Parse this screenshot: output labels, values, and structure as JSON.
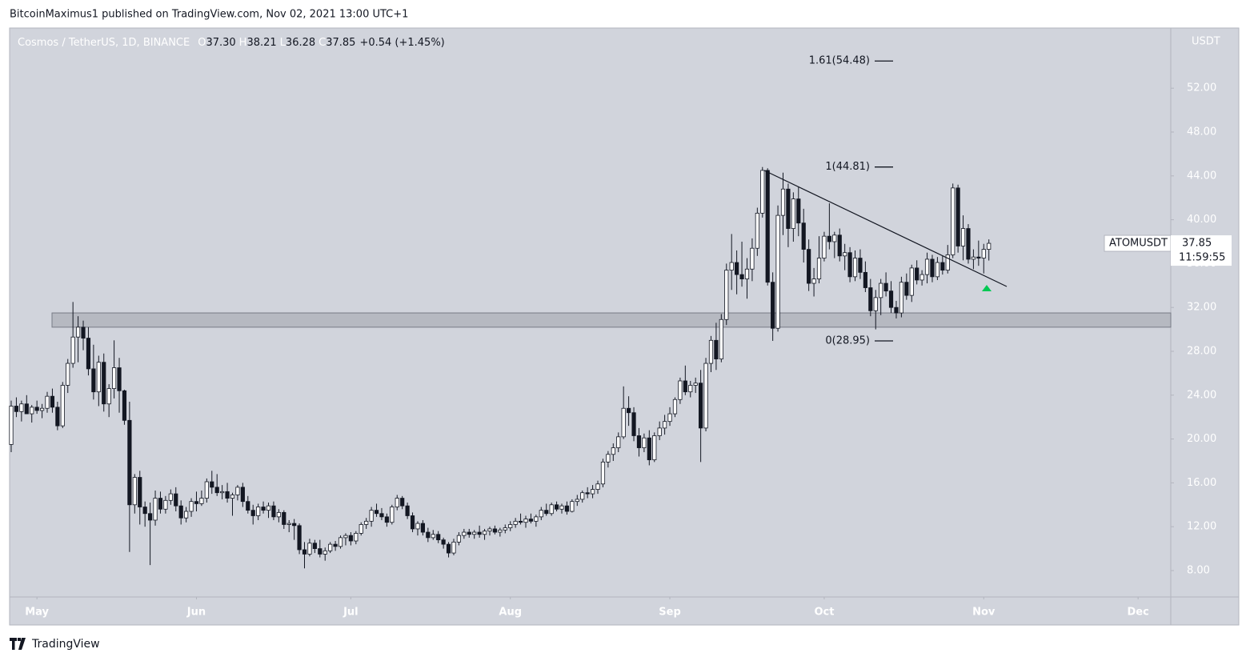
{
  "header": "BitcoinMaximus1 published on TradingView.com, Nov 02, 2021 13:00 UTC+1",
  "footer": "TradingView",
  "chart_data": {
    "type": "candlestick",
    "title": "Cosmos / TetherUS, 1D, BINANCE",
    "legend": [
      {
        "key": "O",
        "value": "37.30"
      },
      {
        "key": "H",
        "value": "38.21"
      },
      {
        "key": "L",
        "value": "36.28"
      },
      {
        "key": "C",
        "value": "37.85"
      }
    ],
    "change": "+0.54 (+1.45%)",
    "categories": [
      null,
      null,
      null,
      null,
      null,
      "May",
      null,
      null,
      null,
      null,
      null,
      null,
      null,
      null,
      null,
      null,
      null,
      null,
      null,
      null,
      null,
      null,
      null,
      null,
      null,
      null,
      null,
      null,
      null,
      null,
      null,
      null,
      null,
      null,
      null,
      null,
      "Jun",
      null,
      null,
      null,
      null,
      null,
      null,
      null,
      null,
      null,
      null,
      null,
      null,
      null,
      null,
      null,
      null,
      null,
      null,
      null,
      null,
      null,
      null,
      null,
      null,
      null,
      null,
      null,
      null,
      null,
      "Jul",
      null,
      null,
      null,
      null,
      null,
      null,
      null,
      null,
      null,
      null,
      null,
      null,
      null,
      null,
      null,
      null,
      null,
      null,
      null,
      null,
      null,
      null,
      null,
      null,
      null,
      null,
      null,
      null,
      null,
      null,
      "Aug",
      null,
      null,
      null,
      null,
      null,
      null,
      null,
      null,
      null,
      null,
      null,
      null,
      null,
      null,
      null,
      null,
      null,
      null,
      null,
      null,
      null,
      null,
      null,
      null,
      null,
      null,
      null,
      null,
      null,
      null,
      "Sep",
      null,
      null,
      null,
      null,
      null,
      null,
      null,
      null,
      null,
      null,
      null,
      null,
      null,
      null,
      null,
      null,
      null,
      null,
      null,
      null,
      null,
      null,
      null,
      null,
      null,
      null,
      null,
      null,
      null,
      "Oct",
      null,
      null,
      null,
      null,
      null,
      null,
      null,
      null,
      null,
      null,
      null,
      null,
      null,
      null,
      null,
      null,
      null,
      null,
      null,
      null,
      null,
      null,
      null,
      null,
      null,
      null,
      null,
      null,
      null,
      null,
      "Nov",
      null,
      null,
      null,
      null,
      null,
      null,
      null,
      null,
      null,
      null,
      null,
      null,
      null,
      null,
      null,
      null,
      null,
      null,
      null,
      null,
      null,
      null,
      null,
      null,
      null,
      null,
      null,
      null,
      null,
      "Dec"
    ],
    "open": [
      19.5,
      23.0,
      22.5,
      23.2,
      22.3,
      22.9,
      22.6,
      22.8,
      23.9,
      22.9,
      21.2,
      24.9,
      26.9,
      29.3,
      30.2,
      29.2,
      26.4,
      24.3,
      27.0,
      23.2,
      24.6,
      26.5,
      24.4,
      21.7,
      14.0,
      16.5,
      13.8,
      13.2,
      12.6,
      14.6,
      13.6,
      14.4,
      15.0,
      13.9,
      12.8,
      13.4,
      14.3,
      14.1,
      14.6,
      16.1,
      15.6,
      15.1,
      15.2,
      14.6,
      14.9,
      15.6,
      14.3,
      13.5,
      13.0,
      13.8,
      13.5,
      13.9,
      12.9,
      13.3,
      12.2,
      12.3,
      12.1,
      9.9,
      9.5,
      10.5,
      10.0,
      9.5,
      9.8,
      10.4,
      10.2,
      11.0,
      11.2,
      10.7,
      11.4,
      12.2,
      12.5,
      13.5,
      13.2,
      12.9,
      12.4,
      13.8,
      14.6,
      13.9,
      13.0,
      11.8,
      12.3,
      11.5,
      11.0,
      11.3,
      10.8,
      10.4,
      9.6,
      10.6,
      11.2,
      11.5,
      11.3,
      11.5,
      11.3,
      11.6,
      11.8,
      11.5,
      11.7,
      11.9,
      12.2,
      12.5,
      12.4,
      12.7,
      12.5,
      12.9,
      13.5,
      13.2,
      14.0,
      13.6,
      13.9,
      13.4,
      14.3,
      14.5,
      15.1,
      15.0,
      15.4,
      15.9,
      17.9,
      18.6,
      19.2,
      20.2,
      22.8,
      22.4,
      20.3,
      19.2,
      20.1,
      18.1,
      20.3,
      21.0,
      21.6,
      22.3,
      23.6,
      25.3,
      24.3,
      24.9,
      25.1,
      21.0,
      26.9,
      29.0,
      27.3,
      30.9,
      35.4,
      36.1,
      35.0,
      34.6,
      35.5,
      37.4,
      40.6,
      44.5,
      34.3,
      30.1,
      40.4,
      42.8,
      39.2,
      41.9,
      39.7,
      37.3,
      34.2,
      34.6,
      36.5,
      38.5,
      38.0,
      38.6,
      36.7,
      37.0,
      34.8,
      36.5,
      35.2,
      33.8,
      31.7,
      32.9,
      34.2,
      33.5,
      32.0,
      31.5,
      34.3,
      33.1,
      35.6,
      34.5,
      35.0,
      36.4,
      34.8,
      36.1,
      35.4,
      36.8,
      42.9,
      37.6,
      39.2,
      36.4,
      36.6,
      36.5,
      37.3,
      null,
      null,
      null,
      null,
      null,
      null,
      null,
      null,
      null,
      null,
      null,
      null,
      null,
      null,
      null,
      null,
      null,
      null,
      null,
      null,
      null,
      null,
      null,
      null,
      null,
      null,
      null,
      null,
      null
    ],
    "high": [
      23.5,
      23.8,
      23.5,
      24.0,
      23.1,
      23.5,
      23.2,
      24.3,
      24.6,
      23.4,
      25.2,
      27.3,
      32.5,
      31.2,
      30.8,
      30.2,
      28.6,
      27.6,
      27.8,
      25.0,
      29.0,
      27.4,
      24.5,
      23.4,
      16.8,
      17.1,
      14.3,
      14.2,
      15.3,
      15.2,
      14.8,
      15.4,
      15.6,
      14.4,
      13.8,
      14.6,
      15.2,
      15.3,
      16.4,
      17.1,
      16.8,
      15.8,
      16.0,
      15.1,
      15.8,
      16.0,
      14.8,
      14.0,
      14.1,
      14.3,
      14.2,
      14.3,
      13.6,
      13.5,
      12.6,
      12.7,
      12.3,
      10.6,
      10.9,
      10.8,
      10.8,
      10.1,
      10.6,
      10.7,
      11.2,
      11.4,
      11.5,
      11.6,
      12.4,
      12.8,
      13.8,
      14.1,
      13.7,
      13.2,
      14.0,
      14.9,
      14.8,
      14.2,
      13.3,
      12.5,
      12.6,
      11.9,
      11.7,
      11.6,
      11.0,
      10.6,
      10.9,
      11.5,
      11.8,
      11.8,
      11.7,
      12.1,
      11.8,
      12.0,
      12.1,
      11.9,
      12.2,
      12.5,
      12.8,
      13.2,
      13.0,
      13.2,
      13.1,
      13.8,
      14.1,
      14.2,
      14.3,
      14.1,
      14.3,
      14.5,
      14.9,
      15.3,
      15.6,
      15.8,
      16.2,
      18.2,
      18.9,
      19.6,
      20.6,
      24.8,
      23.9,
      22.9,
      21.0,
      20.5,
      20.8,
      20.6,
      21.6,
      22.2,
      22.9,
      23.8,
      25.6,
      26.7,
      25.3,
      25.6,
      26.3,
      27.4,
      29.4,
      30.6,
      31.4,
      36.0,
      38.7,
      37.2,
      38.0,
      36.5,
      38.3,
      41.1,
      44.81,
      44.7,
      35.2,
      41.3,
      44.3,
      43.3,
      42.5,
      43.0,
      41.0,
      38.2,
      35.6,
      38.5,
      38.9,
      41.5,
      38.9,
      39.2,
      37.8,
      37.5,
      37.2,
      37.3,
      36.2,
      34.6,
      33.6,
      34.6,
      35.2,
      34.4,
      32.6,
      34.8,
      35.1,
      35.9,
      36.3,
      35.4,
      37.0,
      36.8,
      36.6,
      36.7,
      37.7,
      43.3,
      43.2,
      40.4,
      39.6,
      37.3,
      38.1,
      37.8,
      38.21,
      null,
      null,
      null,
      null,
      null,
      null,
      null,
      null,
      null,
      null,
      null,
      null,
      null,
      null,
      null,
      null,
      null,
      null,
      null,
      null,
      null,
      null,
      null,
      null,
      null,
      null,
      null,
      null,
      null
    ],
    "low": [
      18.8,
      22.0,
      21.6,
      22.5,
      21.5,
      22.3,
      21.9,
      22.4,
      22.4,
      20.8,
      21.0,
      24.2,
      26.5,
      27.0,
      28.1,
      25.8,
      23.6,
      23.0,
      22.5,
      22.0,
      23.7,
      22.4,
      21.3,
      9.7,
      13.2,
      12.2,
      12.0,
      8.5,
      12.1,
      13.2,
      13.2,
      14.0,
      13.4,
      12.2,
      12.4,
      12.9,
      13.4,
      13.9,
      14.2,
      15.0,
      14.8,
      14.5,
      14.2,
      13.0,
      14.4,
      13.8,
      13.2,
      12.2,
      12.6,
      13.2,
      12.8,
      12.6,
      12.4,
      11.8,
      11.5,
      10.8,
      9.5,
      8.2,
      9.3,
      9.6,
      9.2,
      8.9,
      9.6,
      9.8,
      10.0,
      10.3,
      10.3,
      10.4,
      11.2,
      11.8,
      12.0,
      12.9,
      12.6,
      12.0,
      12.2,
      13.5,
      13.6,
      12.7,
      11.5,
      11.2,
      11.2,
      10.6,
      10.8,
      10.5,
      10.0,
      9.2,
      9.4,
      10.3,
      10.9,
      11.0,
      10.9,
      11.0,
      10.8,
      11.2,
      11.3,
      11.1,
      11.4,
      11.6,
      11.9,
      12.2,
      11.9,
      12.3,
      12.0,
      12.6,
      13.0,
      13.0,
      13.4,
      13.2,
      13.1,
      13.3,
      13.9,
      14.2,
      14.6,
      14.6,
      15.0,
      15.6,
      17.4,
      18.0,
      18.8,
      20.0,
      21.2,
      19.8,
      18.4,
      18.8,
      17.6,
      17.9,
      19.9,
      20.4,
      21.2,
      22.0,
      23.2,
      24.0,
      23.8,
      24.2,
      17.9,
      20.7,
      26.1,
      26.3,
      27.0,
      30.4,
      33.6,
      33.2,
      33.9,
      32.8,
      34.4,
      36.7,
      40.2,
      34.0,
      28.95,
      29.8,
      38.6,
      37.5,
      38.0,
      38.5,
      36.1,
      33.5,
      33.0,
      34.2,
      36.2,
      37.3,
      36.5,
      36.2,
      35.4,
      34.3,
      34.4,
      34.6,
      33.4,
      31.2,
      30.0,
      31.3,
      33.0,
      31.5,
      31.0,
      31.1,
      32.7,
      32.5,
      34.1,
      34.0,
      34.2,
      34.3,
      34.5,
      35.0,
      35.1,
      36.5,
      37.0,
      36.3,
      36.0,
      35.5,
      35.8,
      35.1,
      36.28,
      null,
      null,
      null,
      null,
      null,
      null,
      null,
      null,
      null,
      null,
      null,
      null,
      null,
      null,
      null,
      null,
      null,
      null,
      null,
      null,
      null,
      null,
      null,
      null,
      null,
      null,
      null,
      null,
      null
    ],
    "close": [
      23.0,
      22.5,
      23.2,
      22.3,
      22.9,
      22.6,
      22.8,
      23.9,
      22.9,
      21.2,
      24.9,
      26.9,
      29.3,
      30.2,
      29.2,
      26.4,
      24.3,
      27.0,
      23.2,
      24.6,
      26.5,
      24.4,
      21.7,
      14.0,
      16.5,
      13.8,
      13.2,
      12.6,
      14.6,
      13.6,
      14.4,
      15.0,
      13.9,
      12.8,
      13.4,
      14.3,
      14.1,
      14.6,
      16.1,
      15.6,
      15.1,
      15.2,
      14.6,
      14.9,
      15.6,
      14.3,
      13.5,
      13.0,
      13.8,
      13.5,
      13.9,
      12.9,
      13.3,
      12.2,
      12.3,
      12.1,
      9.9,
      9.5,
      10.5,
      10.0,
      9.5,
      9.8,
      10.4,
      10.2,
      11.0,
      11.2,
      10.7,
      11.4,
      12.2,
      12.5,
      13.5,
      13.2,
      12.9,
      12.4,
      13.8,
      14.6,
      13.9,
      13.0,
      11.8,
      12.3,
      11.5,
      11.0,
      11.3,
      10.8,
      10.4,
      9.6,
      10.6,
      11.2,
      11.5,
      11.3,
      11.5,
      11.3,
      11.6,
      11.8,
      11.5,
      11.7,
      11.9,
      12.2,
      12.5,
      12.4,
      12.7,
      12.5,
      12.9,
      13.5,
      13.2,
      14.0,
      13.6,
      13.9,
      13.4,
      14.3,
      14.5,
      15.1,
      15.0,
      15.4,
      15.9,
      17.9,
      18.6,
      19.2,
      20.2,
      22.8,
      22.4,
      20.3,
      19.2,
      20.1,
      18.1,
      20.3,
      21.0,
      21.6,
      22.3,
      23.6,
      25.3,
      24.3,
      24.9,
      25.1,
      21.0,
      26.9,
      29.0,
      27.3,
      30.9,
      35.4,
      36.1,
      35.0,
      34.6,
      35.5,
      37.4,
      40.6,
      44.5,
      34.3,
      30.1,
      40.4,
      42.8,
      39.2,
      41.9,
      39.7,
      37.3,
      34.2,
      34.6,
      36.5,
      38.5,
      38.0,
      38.6,
      36.7,
      37.0,
      34.8,
      36.5,
      35.2,
      33.8,
      31.7,
      32.9,
      34.2,
      33.5,
      32.0,
      31.5,
      34.3,
      33.1,
      35.6,
      34.5,
      35.0,
      36.4,
      34.8,
      36.1,
      35.4,
      36.8,
      42.9,
      37.6,
      39.2,
      36.4,
      36.6,
      36.5,
      37.3,
      37.85,
      null,
      null,
      null,
      null,
      null,
      null,
      null,
      null,
      null,
      null,
      null,
      null,
      null,
      null,
      null,
      null,
      null,
      null,
      null,
      null,
      null,
      null,
      null,
      null,
      null,
      null,
      null,
      null,
      null
    ],
    "up_color": "#ffffff",
    "down_color": "#131722",
    "ylim": [
      5.59,
      57.49
    ],
    "yticks": [
      {
        "value": 8,
        "label": "8.00"
      },
      {
        "value": 12,
        "label": "12.00"
      },
      {
        "value": 16,
        "label": "16.00"
      },
      {
        "value": 20,
        "label": "20.00"
      },
      {
        "value": 24,
        "label": "24.00"
      },
      {
        "value": 28,
        "label": "28.00"
      },
      {
        "value": 32,
        "label": "32.00"
      },
      {
        "value": 36,
        "label": "36.00"
      },
      {
        "value": 40,
        "label": "40.00"
      },
      {
        "value": 44,
        "label": "44.00"
      },
      {
        "value": 48,
        "label": "48.00"
      },
      {
        "value": 52,
        "label": "52.00"
      }
    ],
    "axis_unit": "USDT",
    "zone": {
      "low": 30.2,
      "high": 31.5
    },
    "fib_levels": [
      {
        "label": "1.61(54.48)",
        "value": 54.48
      },
      {
        "label": "1(44.81)",
        "value": 44.81
      },
      {
        "label": "0(28.95)",
        "value": 28.95
      }
    ],
    "price_tag": {
      "symbol": "ATOMUSDT",
      "countdown": "11:59:55"
    }
  }
}
